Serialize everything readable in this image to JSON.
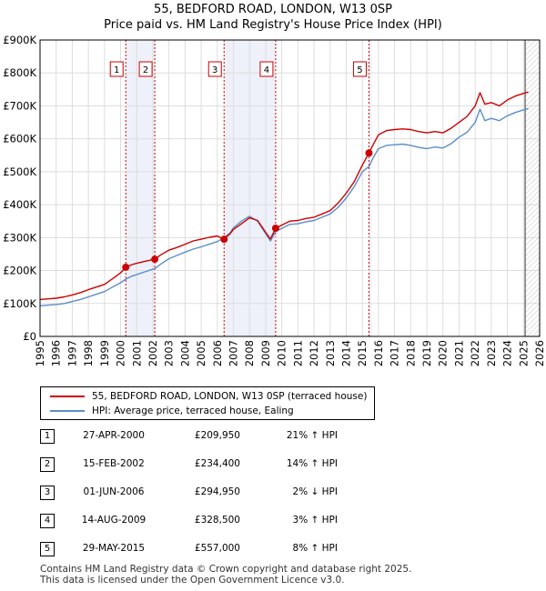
{
  "title": {
    "line1": "55, BEDFORD ROAD, LONDON, W13 0SP",
    "line2": "Price paid vs. HM Land Registry's House Price Index (HPI)"
  },
  "colors": {
    "property": "#cc0000",
    "hpi": "#5b8ec9",
    "sale_band": "#eef1f9",
    "grid": "#dddddd",
    "hatch": "#cccccc"
  },
  "legend": {
    "property_label": "55, BEDFORD ROAD, LONDON, W13 0SP (terraced house)",
    "hpi_label": "HPI: Average price, terraced house, Ealing"
  },
  "sales": [
    {
      "num": "1",
      "date": "27-APR-2000",
      "price": "£209,950",
      "hpi": "21% ↑ HPI"
    },
    {
      "num": "2",
      "date": "15-FEB-2002",
      "price": "£234,400",
      "hpi": "14% ↑ HPI"
    },
    {
      "num": "3",
      "date": "01-JUN-2006",
      "price": "£294,950",
      "hpi": "2% ↓ HPI"
    },
    {
      "num": "4",
      "date": "14-AUG-2009",
      "price": "£328,500",
      "hpi": "3% ↑ HPI"
    },
    {
      "num": "5",
      "date": "29-MAY-2015",
      "price": "£557,000",
      "hpi": "8% ↑ HPI"
    }
  ],
  "footer": {
    "line1": "Contains HM Land Registry data © Crown copyright and database right 2025.",
    "line2": "This data is licensed under the Open Government Licence v3.0."
  },
  "chart_data": {
    "type": "line",
    "title": "55, BEDFORD ROAD, LONDON, W13 0SP",
    "subtitle": "Price paid vs. HM Land Registry's House Price Index (HPI)",
    "xlabel": "",
    "ylabel": "",
    "xlim": [
      1995,
      2026
    ],
    "ylim": [
      0,
      900000
    ],
    "x_ticks": [
      1995,
      1996,
      1997,
      1998,
      1999,
      2000,
      2001,
      2002,
      2003,
      2004,
      2005,
      2006,
      2007,
      2008,
      2009,
      2010,
      2011,
      2012,
      2013,
      2014,
      2015,
      2016,
      2017,
      2018,
      2019,
      2020,
      2021,
      2022,
      2023,
      2024,
      2025,
      2026
    ],
    "y_ticks": [
      0,
      100000,
      200000,
      300000,
      400000,
      500000,
      600000,
      700000,
      800000,
      900000
    ],
    "y_tick_labels": [
      "£0",
      "£100K",
      "£200K",
      "£300K",
      "£400K",
      "£500K",
      "£600K",
      "£700K",
      "£800K",
      "£900K"
    ],
    "grid": true,
    "data_end_year": 2025.1,
    "legend_position": "below",
    "series": [
      {
        "name": "55, BEDFORD ROAD, LONDON, W13 0SP (terraced house)",
        "color": "#cc0000",
        "x": [
          1995.0,
          1995.5,
          1996.0,
          1996.5,
          1997.0,
          1997.5,
          1998.0,
          1998.5,
          1999.0,
          1999.5,
          2000.0,
          2000.32,
          2000.7,
          2001.0,
          2001.5,
          2002.12,
          2002.5,
          2003.0,
          2003.5,
          2004.0,
          2004.5,
          2005.0,
          2005.5,
          2006.0,
          2006.42,
          2006.8,
          2007.0,
          2007.5,
          2008.0,
          2008.5,
          2009.0,
          2009.3,
          2009.62,
          2010.0,
          2010.5,
          2011.0,
          2011.5,
          2012.0,
          2012.5,
          2013.0,
          2013.5,
          2014.0,
          2014.5,
          2015.0,
          2015.41,
          2015.7,
          2016.0,
          2016.5,
          2017.0,
          2017.5,
          2018.0,
          2018.5,
          2019.0,
          2019.5,
          2020.0,
          2020.5,
          2021.0,
          2021.5,
          2022.0,
          2022.3,
          2022.6,
          2023.0,
          2023.5,
          2024.0,
          2024.5,
          2025.0,
          2025.3
        ],
        "values": [
          112000,
          114000,
          116000,
          120000,
          126000,
          133000,
          142000,
          150000,
          158000,
          175000,
          193000,
          209950,
          218000,
          222000,
          228000,
          234400,
          248000,
          262000,
          270000,
          280000,
          290000,
          295000,
          301000,
          305000,
          294950,
          312000,
          325000,
          342000,
          360000,
          352000,
          316000,
          296000,
          328500,
          338000,
          350000,
          352000,
          358000,
          362000,
          372000,
          382000,
          405000,
          435000,
          470000,
          520000,
          557000,
          585000,
          612000,
          625000,
          628000,
          630000,
          628000,
          622000,
          618000,
          622000,
          618000,
          632000,
          650000,
          668000,
          700000,
          740000,
          705000,
          710000,
          700000,
          718000,
          730000,
          738000,
          742000
        ]
      },
      {
        "name": "HPI: Average price, terraced house, Ealing",
        "color": "#5b8ec9",
        "x": [
          1995.0,
          1995.5,
          1996.0,
          1996.5,
          1997.0,
          1997.5,
          1998.0,
          1998.5,
          1999.0,
          1999.5,
          2000.0,
          2000.32,
          2000.7,
          2001.0,
          2001.5,
          2002.12,
          2002.5,
          2003.0,
          2003.5,
          2004.0,
          2004.5,
          2005.0,
          2005.5,
          2006.0,
          2006.42,
          2006.8,
          2007.0,
          2007.5,
          2008.0,
          2008.5,
          2009.0,
          2009.3,
          2009.62,
          2010.0,
          2010.5,
          2011.0,
          2011.5,
          2012.0,
          2012.5,
          2013.0,
          2013.5,
          2014.0,
          2014.5,
          2015.0,
          2015.41,
          2015.7,
          2016.0,
          2016.5,
          2017.0,
          2017.5,
          2018.0,
          2018.5,
          2019.0,
          2019.5,
          2020.0,
          2020.5,
          2021.0,
          2021.5,
          2022.0,
          2022.3,
          2022.6,
          2023.0,
          2023.5,
          2024.0,
          2024.5,
          2025.0,
          2025.3
        ],
        "values": [
          93000,
          95000,
          97000,
          100000,
          106000,
          112000,
          120000,
          128000,
          136000,
          150000,
          163000,
          174000,
          183000,
          188000,
          196000,
          206000,
          220000,
          236000,
          246000,
          256000,
          265000,
          272000,
          280000,
          288000,
          300000,
          315000,
          330000,
          350000,
          365000,
          350000,
          312000,
          290000,
          318000,
          328000,
          340000,
          342000,
          348000,
          352000,
          362000,
          372000,
          392000,
          420000,
          455000,
          500000,
          516000,
          545000,
          570000,
          580000,
          582000,
          584000,
          580000,
          574000,
          570000,
          575000,
          572000,
          585000,
          605000,
          620000,
          650000,
          690000,
          655000,
          662000,
          655000,
          670000,
          680000,
          688000,
          692000
        ]
      }
    ],
    "markers": [
      {
        "label": "1",
        "x": 2000.32,
        "y": 209950
      },
      {
        "label": "2",
        "x": 2002.12,
        "y": 234400
      },
      {
        "label": "3",
        "x": 2006.42,
        "y": 294950
      },
      {
        "label": "4",
        "x": 2009.62,
        "y": 328500
      },
      {
        "label": "5",
        "x": 2015.41,
        "y": 557000
      }
    ],
    "shaded_spans": [
      [
        2000.32,
        2002.12
      ],
      [
        2006.42,
        2009.62
      ],
      [
        2015.41,
        2015.58
      ]
    ]
  }
}
